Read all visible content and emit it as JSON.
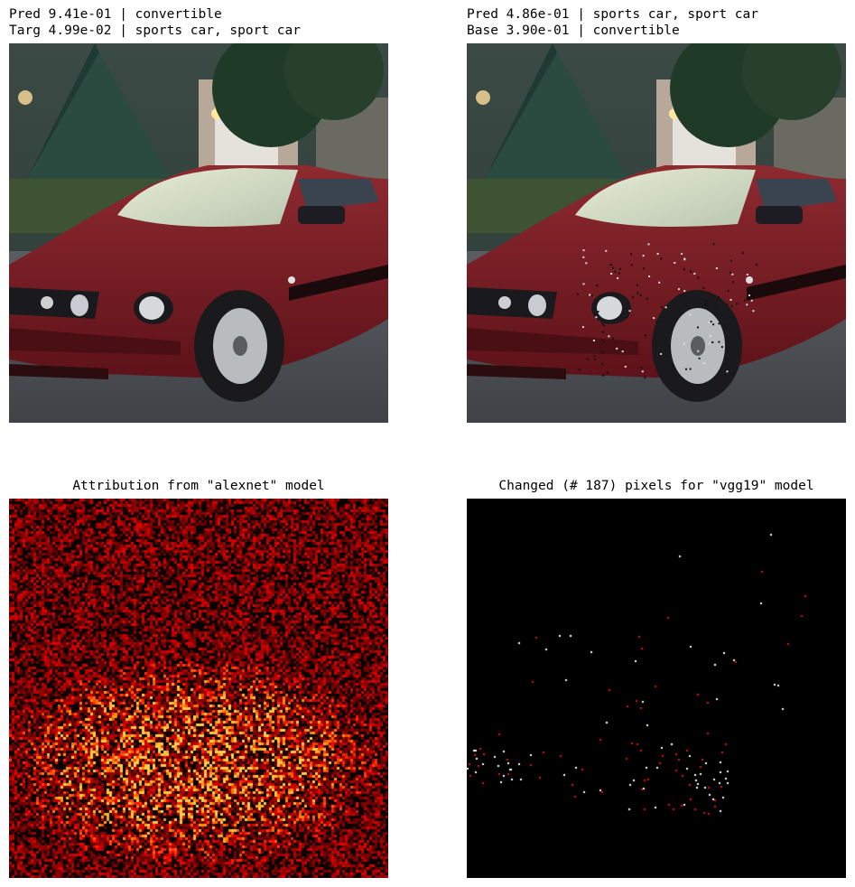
{
  "panels": {
    "original": {
      "line1": "Pred 9.41e-01 | convertible",
      "line2": "Targ 4.99e-02 | sports car, sport car"
    },
    "adversarial": {
      "line1": "Pred 4.86e-01 | sports car, sport car",
      "line2": "Base 3.90e-01 | convertible"
    },
    "attribution": {
      "title": "Attribution from \"alexnet\" model"
    },
    "changed": {
      "title": "Changed (# 187) pixels for \"vgg19\" model"
    }
  },
  "colors": {
    "car_red": "#7a1a22",
    "tree_green": "#2f4a3a",
    "road_gray": "#4a4d52",
    "heat_dark": "#1a0000",
    "heat_hot": "#ffd24a"
  }
}
